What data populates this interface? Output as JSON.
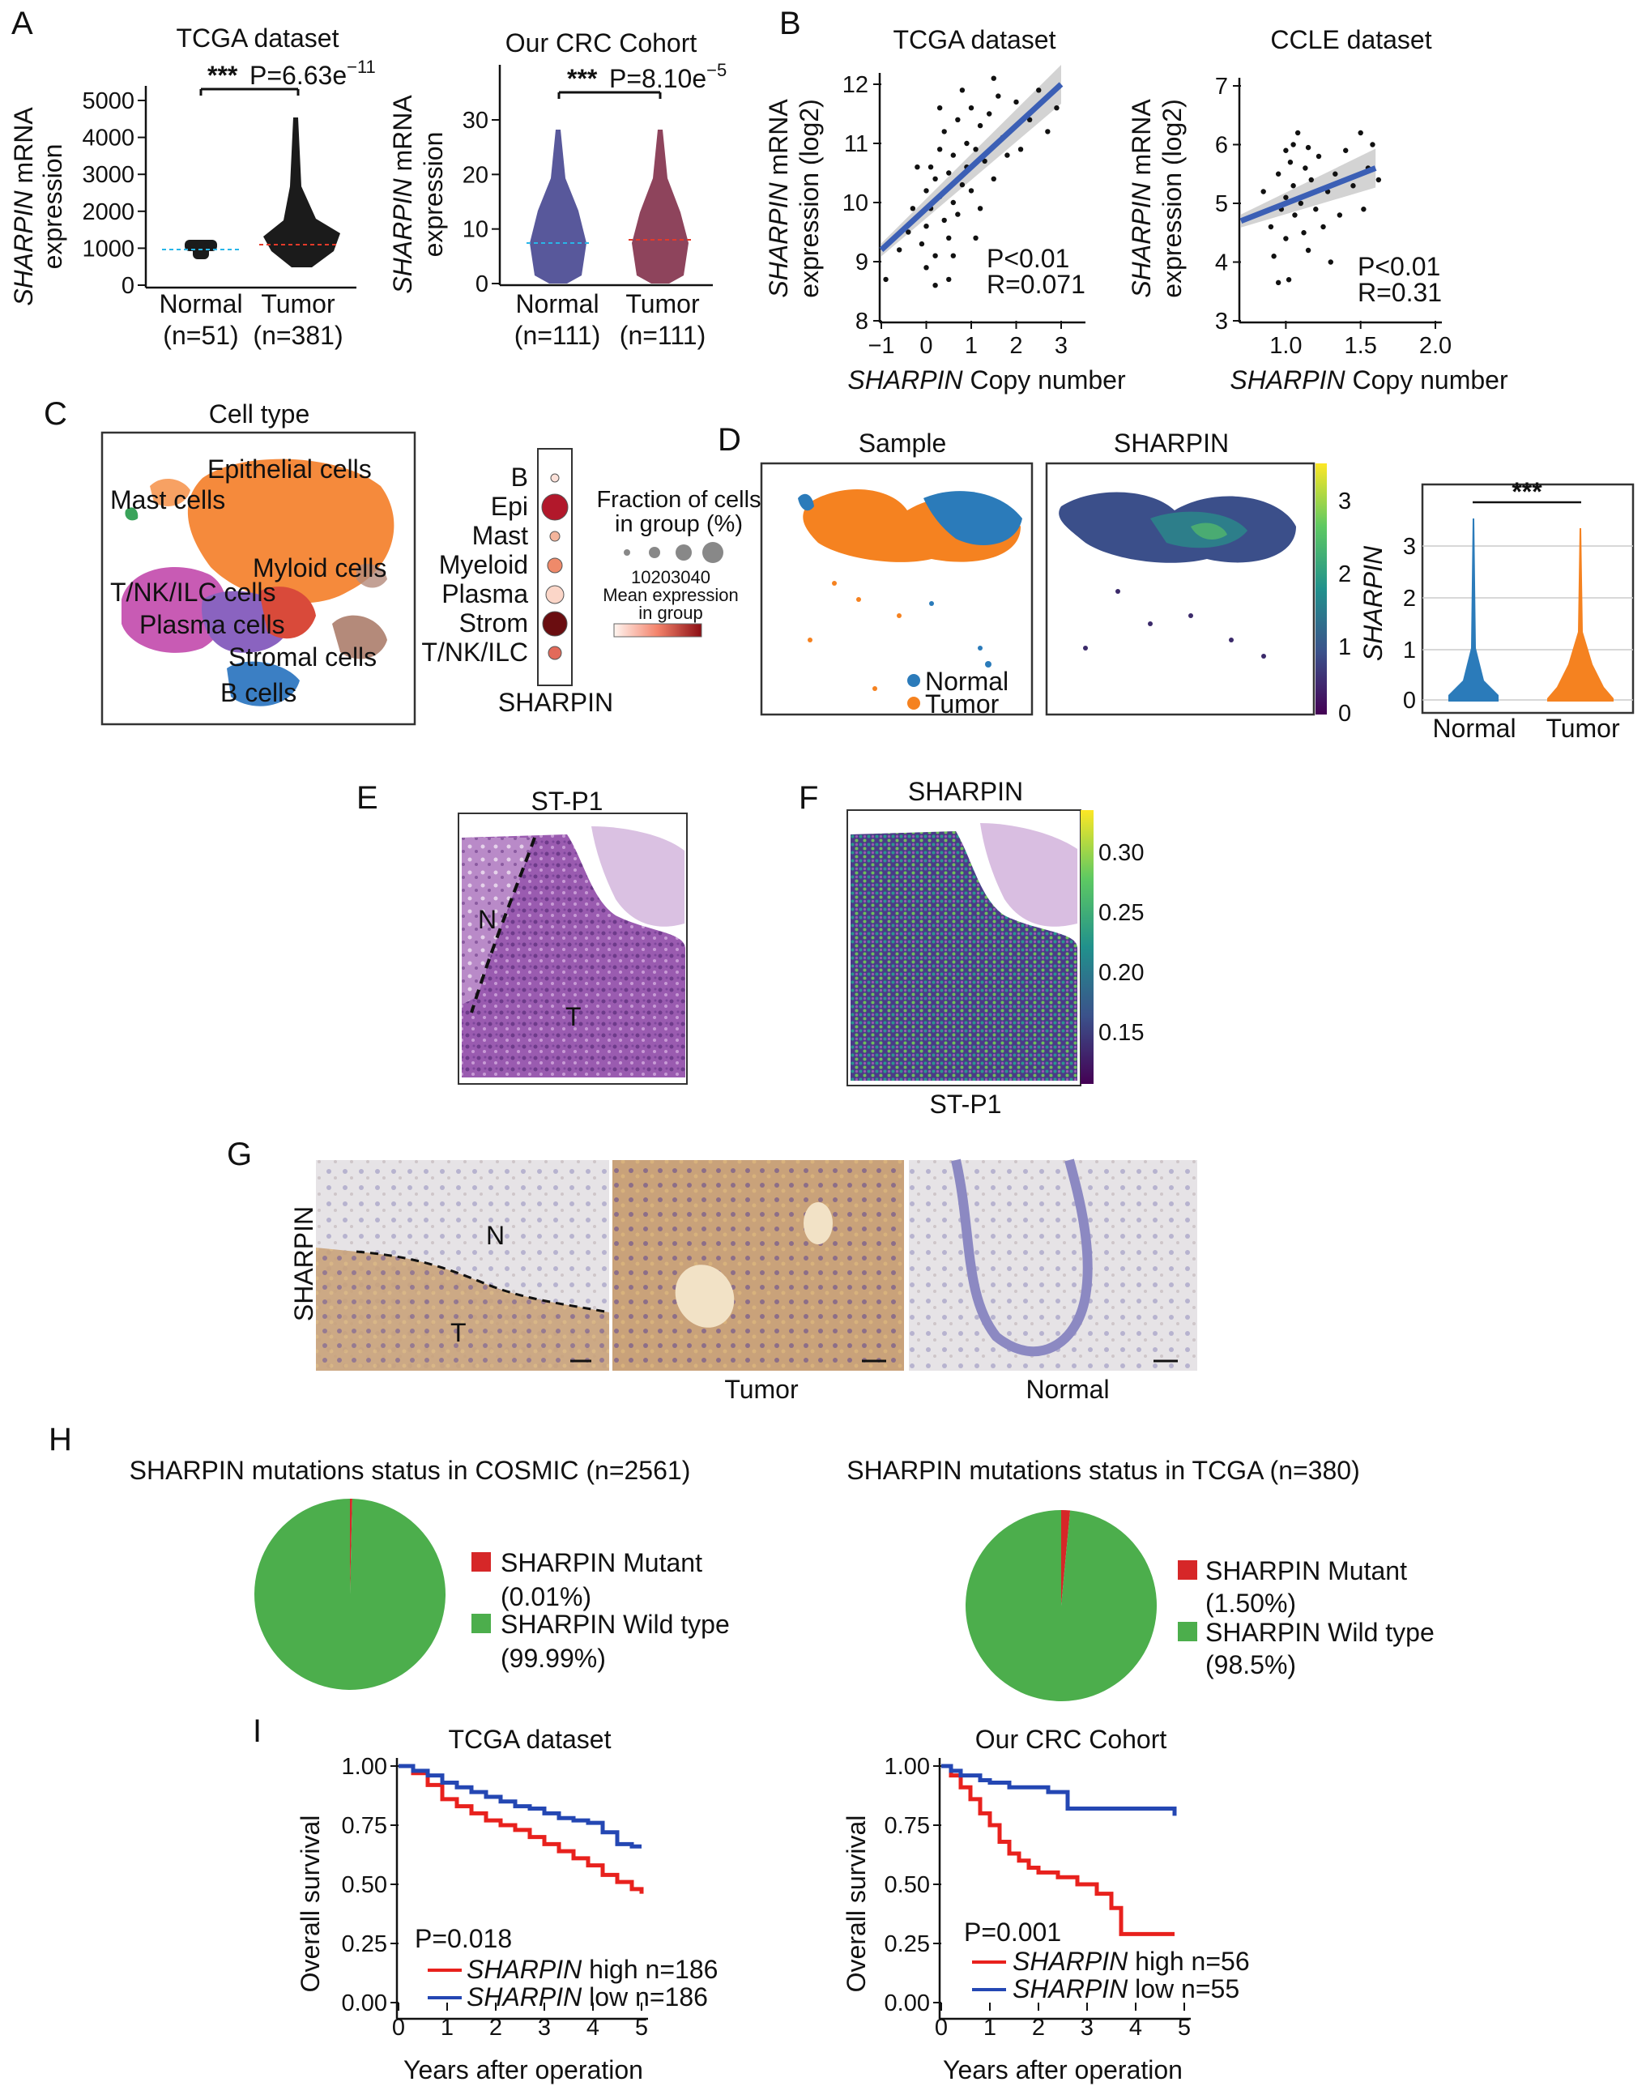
{
  "panels": {
    "A": {
      "label": "A",
      "left": {
        "title": "TCGA dataset",
        "ylabel_italic": "SHARPIN",
        "ylabel_rest": " mRNA",
        "ylabel_line2": "expression",
        "sig_stars": "***",
        "p_text": "P=6.63e",
        "p_exp": "−11",
        "yticks": [
          "0",
          "1000",
          "2000",
          "3000",
          "4000",
          "5000"
        ],
        "groups": [
          {
            "name": "Normal",
            "n": "(n=51)",
            "median": 950
          },
          {
            "name": "Tumor",
            "n": "(n=381)",
            "median": 1100
          }
        ]
      },
      "right": {
        "title": "Our CRC Cohort",
        "ylabel_italic": "SHARPIN",
        "ylabel_rest": " mRNA",
        "ylabel_line2": "expression",
        "sig_stars": "***",
        "p_text": "P=8.10e",
        "p_exp": "−5",
        "yticks": [
          "0",
          "10",
          "20",
          "30"
        ],
        "groups": [
          {
            "name": "Normal",
            "n": "(n=111)",
            "median": 7
          },
          {
            "name": "Tumor",
            "n": "(n=111)",
            "median": 7.5
          }
        ]
      }
    },
    "B": {
      "label": "B",
      "left": {
        "title": "TCGA dataset",
        "ylabel_italic": "SHARPIN",
        "ylabel_rest": " mRNA",
        "ylabel_line2": "expression (log2)",
        "xlabel_italic": "SHARPIN",
        "xlabel_rest": " Copy number",
        "xticks": [
          "−1",
          "0",
          "1",
          "2",
          "3"
        ],
        "yticks": [
          "8",
          "9",
          "10",
          "11",
          "12"
        ],
        "stat_p": "P<0.01",
        "stat_r": "R=0.071"
      },
      "right": {
        "title": "CCLE dataset",
        "ylabel_italic": "SHARPIN",
        "ylabel_rest": " mRNA",
        "ylabel_line2": "expression (log2)",
        "xlabel_italic": "SHARPIN",
        "xlabel_rest": " Copy number",
        "xticks": [
          "1.0",
          "1.5",
          "2.0"
        ],
        "yticks": [
          "3",
          "4",
          "5",
          "6",
          "7"
        ],
        "stat_p": "P<0.01",
        "stat_r": "R=0.31"
      }
    },
    "C": {
      "label": "C",
      "title": "Cell type",
      "clusters": [
        "Epithelial cells",
        "Mast cells",
        "Myloid cells",
        "T/NK/ILC cells",
        "Plasma cells",
        "Stromal cells",
        "B cells"
      ],
      "dot_rows": [
        "B",
        "Epi",
        "Mast",
        "Myeloid",
        "Plasma",
        "Strom",
        "T/NK/ILC"
      ],
      "dot_gene": "SHARPIN",
      "legend_frac_title_1": "Fraction of cells",
      "legend_frac_title_2": "in group (%)",
      "legend_frac_ticks": "10203040",
      "legend_mean_1": "Mean expression",
      "legend_mean_2": "in group"
    },
    "D": {
      "label": "D",
      "sample_title": "Sample",
      "gene_title": "SHARPIN",
      "legend": [
        "Normal",
        "Tumor"
      ],
      "colorbar_ticks": [
        "0",
        "1",
        "2",
        "3"
      ],
      "violin_ylabel": "SHARPIN",
      "violin_yticks": [
        "0",
        "1",
        "2",
        "3"
      ],
      "violin_groups": [
        "Normal",
        "Tumor"
      ],
      "sig": "***"
    },
    "E": {
      "label": "E",
      "title": "ST-P1",
      "region_n": "N",
      "region_t": "T"
    },
    "F": {
      "label": "F",
      "title": "SHARPIN",
      "subtitle": "ST-P1",
      "colorbar_ticks": [
        "0.30",
        "0.25",
        "0.20",
        "0.15"
      ]
    },
    "G": {
      "label": "G",
      "ylabel": "SHARPIN",
      "region_n": "N",
      "region_t": "T",
      "captions": [
        "Tumor",
        "Normal"
      ]
    },
    "H": {
      "label": "H",
      "left": {
        "title": "SHARPIN mutations status in COSMIC (n=2561)",
        "mutant_label": "SHARPIN Mutant",
        "mutant_pct": "(0.01%)",
        "wild_label": "SHARPIN Wild type",
        "wild_pct": "(99.99%)"
      },
      "right": {
        "title": "SHARPIN mutations status in TCGA (n=380)",
        "mutant_label": "SHARPIN Mutant",
        "mutant_pct": "(1.50%)",
        "wild_label": "SHARPIN Wild type",
        "wild_pct": "(98.5%)"
      }
    },
    "I": {
      "label": "I",
      "left": {
        "title": "TCGA dataset",
        "ylabel": "Overall survival",
        "xlabel": "Years after operation",
        "xticks": [
          "0",
          "1",
          "2",
          "3",
          "4",
          "5"
        ],
        "yticks": [
          "0.00",
          "0.25",
          "0.50",
          "0.75",
          "1.00"
        ],
        "p_text": "P=0.018",
        "high_gene": "SHARPIN",
        "high_rest": " high n=186",
        "low_gene": "SHARPIN",
        "low_rest": " low n=186"
      },
      "right": {
        "title": "Our CRC Cohort",
        "ylabel": "Overall survival",
        "xlabel": "Years after operation",
        "xticks": [
          "0",
          "1",
          "2",
          "3",
          "4",
          "5"
        ],
        "yticks": [
          "0.00",
          "0.25",
          "0.50",
          "0.75",
          "1.00"
        ],
        "p_text": "P=0.001",
        "high_gene": "SHARPIN",
        "high_rest": " high n=56",
        "low_gene": "SHARPIN",
        "low_rest": " low n=55"
      }
    }
  },
  "colors": {
    "normal": "#2b7bba",
    "tumor": "#f58220",
    "mutant": "#d62728",
    "wild": "#4cae4c",
    "high": "#e8211d",
    "low": "#2447b3",
    "regression": "#3b5fb5",
    "confband": "#c8c8c8"
  },
  "chart_data": [
    {
      "type": "scatter",
      "panel": "A-left",
      "categories": [
        "Normal",
        "Tumor"
      ],
      "ylim": [
        0,
        5000
      ],
      "series": [
        {
          "values_median": [
            950,
            1100
          ]
        }
      ]
    },
    {
      "type": "scatter",
      "panel": "A-right",
      "categories": [
        "Normal",
        "Tumor"
      ],
      "ylim": [
        0,
        30
      ],
      "series": [
        {
          "values_median": [
            7,
            7.5
          ]
        }
      ]
    },
    {
      "type": "scatter",
      "panel": "B-left",
      "xlim": [
        -1,
        3
      ],
      "ylim": [
        8,
        12
      ],
      "regression": [
        [
          -1,
          9.2
        ],
        [
          3,
          12
        ]
      ],
      "points": [
        [
          -0.9,
          8.7
        ],
        [
          -0.6,
          9.2
        ],
        [
          -0.4,
          9.5
        ],
        [
          -0.3,
          9.9
        ],
        [
          -0.1,
          9.3
        ],
        [
          0,
          10.2
        ],
        [
          0,
          9.6
        ],
        [
          0,
          8.9
        ],
        [
          0.1,
          10.6
        ],
        [
          0.1,
          9.9
        ],
        [
          0.2,
          10.4
        ],
        [
          0.2,
          9.1
        ],
        [
          0.3,
          10.9
        ],
        [
          0.3,
          10.1
        ],
        [
          0.4,
          9.7
        ],
        [
          0.4,
          11.2
        ],
        [
          0.5,
          10.5
        ],
        [
          0.5,
          9.4
        ],
        [
          0.6,
          10.8
        ],
        [
          0.6,
          10.0
        ],
        [
          0.7,
          11.4
        ],
        [
          0.7,
          9.8
        ],
        [
          0.8,
          10.3
        ],
        [
          0.9,
          11.0
        ],
        [
          0.9,
          10.6
        ],
        [
          1.0,
          11.6
        ],
        [
          1.0,
          10.2
        ],
        [
          1.1,
          10.9
        ],
        [
          1.2,
          11.3
        ],
        [
          1.2,
          9.9
        ],
        [
          1.3,
          10.7
        ],
        [
          1.4,
          11.5
        ],
        [
          1.5,
          10.4
        ],
        [
          1.6,
          11.8
        ],
        [
          1.7,
          11.1
        ],
        [
          1.8,
          10.8
        ],
        [
          2.0,
          11.7
        ],
        [
          2.1,
          10.9
        ],
        [
          2.3,
          11.4
        ],
        [
          2.5,
          11.9
        ],
        [
          2.7,
          11.2
        ],
        [
          2.9,
          11.6
        ],
        [
          0.2,
          8.6
        ],
        [
          0.5,
          8.7
        ],
        [
          1.1,
          9.4
        ],
        [
          -0.2,
          10.6
        ],
        [
          0.8,
          11.9
        ],
        [
          1.5,
          12.1
        ],
        [
          0.3,
          11.6
        ],
        [
          0.6,
          9.1
        ]
      ]
    },
    {
      "type": "scatter",
      "panel": "B-right",
      "xlim": [
        0.7,
        2.0
      ],
      "ylim": [
        3,
        7
      ],
      "regression": [
        [
          0.7,
          4.7
        ],
        [
          1.6,
          5.6
        ]
      ],
      "points": [
        [
          0.85,
          5.2
        ],
        [
          0.9,
          4.6
        ],
        [
          0.92,
          4.1
        ],
        [
          0.95,
          5.5
        ],
        [
          0.97,
          4.9
        ],
        [
          1.0,
          5.9
        ],
        [
          1.0,
          5.1
        ],
        [
          1.0,
          4.4
        ],
        [
          1.02,
          3.7
        ],
        [
          1.03,
          5.7
        ],
        [
          1.05,
          5.3
        ],
        [
          1.06,
          4.8
        ],
        [
          1.08,
          6.2
        ],
        [
          1.1,
          5.0
        ],
        [
          1.12,
          4.5
        ],
        [
          1.13,
          5.6
        ],
        [
          1.15,
          4.2
        ],
        [
          1.17,
          5.4
        ],
        [
          1.2,
          4.9
        ],
        [
          1.22,
          5.8
        ],
        [
          1.25,
          4.6
        ],
        [
          1.28,
          5.2
        ],
        [
          1.3,
          4.0
        ],
        [
          1.33,
          5.5
        ],
        [
          1.36,
          4.8
        ],
        [
          1.4,
          5.9
        ],
        [
          1.45,
          5.3
        ],
        [
          1.5,
          6.2
        ],
        [
          1.52,
          4.9
        ],
        [
          1.55,
          5.6
        ],
        [
          1.58,
          6.0
        ],
        [
          1.62,
          5.4
        ],
        [
          0.95,
          3.65
        ],
        [
          1.05,
          6.0
        ],
        [
          1.15,
          5.95
        ]
      ]
    },
    {
      "type": "pie",
      "panel": "H-left",
      "categories": [
        "SHARPIN Mutant",
        "SHARPIN Wild type"
      ],
      "values": [
        0.01,
        99.99
      ]
    },
    {
      "type": "pie",
      "panel": "H-right",
      "categories": [
        "SHARPIN Mutant",
        "SHARPIN Wild type"
      ],
      "values": [
        1.5,
        98.5
      ]
    },
    {
      "type": "line",
      "panel": "I-left",
      "xlim": [
        0,
        5
      ],
      "ylim": [
        0,
        1
      ],
      "series": [
        {
          "name": "SHARPIN high n=186",
          "x": [
            0,
            0.3,
            0.6,
            0.9,
            1.2,
            1.5,
            1.8,
            2.1,
            2.4,
            2.7,
            3.0,
            3.3,
            3.6,
            3.9,
            4.2,
            4.5,
            4.8,
            5.0
          ],
          "y": [
            1.0,
            0.97,
            0.92,
            0.86,
            0.83,
            0.8,
            0.77,
            0.75,
            0.73,
            0.7,
            0.67,
            0.64,
            0.61,
            0.58,
            0.54,
            0.51,
            0.48,
            0.46
          ]
        },
        {
          "name": "SHARPIN low n=186",
          "x": [
            0,
            0.3,
            0.6,
            0.9,
            1.2,
            1.5,
            1.8,
            2.1,
            2.4,
            2.7,
            3.0,
            3.3,
            3.6,
            3.9,
            4.2,
            4.5,
            4.8,
            5.0
          ],
          "y": [
            1.0,
            0.98,
            0.96,
            0.93,
            0.91,
            0.89,
            0.87,
            0.85,
            0.83,
            0.82,
            0.8,
            0.78,
            0.77,
            0.76,
            0.72,
            0.67,
            0.66,
            0.66
          ]
        }
      ]
    },
    {
      "type": "line",
      "panel": "I-right",
      "xlim": [
        0,
        5
      ],
      "ylim": [
        0,
        1
      ],
      "series": [
        {
          "name": "SHARPIN high n=56",
          "x": [
            0,
            0.2,
            0.4,
            0.6,
            0.8,
            1.0,
            1.2,
            1.4,
            1.6,
            1.8,
            2.0,
            2.4,
            2.8,
            3.2,
            3.5,
            3.7,
            4.0,
            4.5,
            4.8
          ],
          "y": [
            1.0,
            0.96,
            0.91,
            0.86,
            0.8,
            0.75,
            0.68,
            0.63,
            0.6,
            0.57,
            0.55,
            0.53,
            0.5,
            0.46,
            0.4,
            0.29,
            0.29,
            0.29,
            0.29
          ]
        },
        {
          "name": "SHARPIN low n=55",
          "x": [
            0,
            0.2,
            0.4,
            0.6,
            0.8,
            1.0,
            1.4,
            1.8,
            2.2,
            2.6,
            3.0,
            3.5,
            4.0,
            4.5,
            4.8
          ],
          "y": [
            1.0,
            0.98,
            0.96,
            0.96,
            0.94,
            0.93,
            0.91,
            0.91,
            0.89,
            0.82,
            0.82,
            0.82,
            0.82,
            0.82,
            0.79
          ]
        }
      ]
    }
  ]
}
